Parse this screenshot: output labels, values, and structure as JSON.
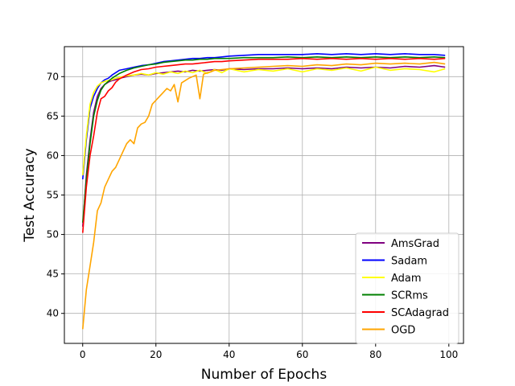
{
  "chart_data": {
    "type": "line",
    "xlabel": "Number of Epochs",
    "ylabel": "Test Accuracy",
    "xlim": [
      -5,
      104
    ],
    "ylim": [
      36.2,
      73.8
    ],
    "x_ticks": [
      0,
      20,
      40,
      60,
      80,
      100
    ],
    "y_ticks": [
      40,
      45,
      50,
      55,
      60,
      65,
      70
    ],
    "grid": true,
    "legend_position": "lower-right",
    "series": [
      {
        "name": "AmsGrad",
        "color": "#800080",
        "x": [
          0,
          1,
          2,
          3,
          4,
          5,
          6,
          7,
          8,
          9,
          10,
          12,
          14,
          16,
          18,
          20,
          22,
          24,
          26,
          28,
          30,
          32,
          34,
          36,
          38,
          40,
          44,
          48,
          52,
          56,
          60,
          64,
          68,
          72,
          76,
          80,
          84,
          88,
          92,
          96,
          99
        ],
        "values": [
          51.0,
          57.5,
          62.0,
          65.5,
          67.5,
          68.5,
          69.0,
          69.3,
          69.5,
          69.6,
          69.8,
          70.0,
          70.2,
          70.3,
          70.2,
          70.4,
          70.5,
          70.6,
          70.7,
          70.6,
          70.8,
          70.7,
          70.8,
          70.9,
          70.8,
          71.0,
          70.9,
          71.0,
          71.0,
          71.1,
          71.0,
          71.1,
          71.0,
          71.2,
          71.1,
          71.2,
          71.1,
          71.3,
          71.2,
          71.4,
          71.2
        ]
      },
      {
        "name": "Sadam",
        "color": "#0000ff",
        "x": [
          0,
          1,
          2,
          3,
          4,
          5,
          6,
          7,
          8,
          9,
          10,
          12,
          14,
          16,
          18,
          20,
          22,
          24,
          26,
          28,
          30,
          32,
          34,
          36,
          38,
          40,
          44,
          48,
          52,
          56,
          60,
          64,
          68,
          72,
          76,
          80,
          84,
          88,
          92,
          96,
          99
        ],
        "values": [
          57.0,
          62.0,
          66.0,
          67.5,
          68.5,
          69.2,
          69.6,
          69.8,
          70.2,
          70.5,
          70.8,
          71.0,
          71.2,
          71.4,
          71.5,
          71.7,
          71.9,
          72.0,
          72.1,
          72.2,
          72.3,
          72.3,
          72.4,
          72.4,
          72.5,
          72.6,
          72.7,
          72.8,
          72.8,
          72.8,
          72.8,
          72.9,
          72.8,
          72.9,
          72.8,
          72.9,
          72.8,
          72.9,
          72.8,
          72.8,
          72.7
        ]
      },
      {
        "name": "Adam",
        "color": "#ffff00",
        "x": [
          0,
          1,
          2,
          3,
          4,
          5,
          6,
          7,
          8,
          9,
          10,
          12,
          14,
          16,
          18,
          20,
          22,
          24,
          26,
          28,
          30,
          32,
          34,
          36,
          38,
          40,
          44,
          48,
          52,
          56,
          60,
          64,
          68,
          72,
          76,
          80,
          84,
          88,
          92,
          96,
          99
        ],
        "values": [
          57.5,
          62.5,
          66.5,
          68.0,
          68.8,
          69.2,
          69.4,
          69.5,
          69.6,
          69.8,
          69.9,
          70.1,
          70.2,
          70.4,
          70.2,
          70.5,
          70.3,
          70.6,
          70.4,
          70.7,
          70.5,
          70.8,
          70.4,
          70.9,
          70.5,
          71.0,
          70.6,
          70.9,
          70.7,
          71.0,
          70.6,
          71.0,
          70.8,
          71.1,
          70.7,
          71.2,
          70.8,
          71.0,
          70.9,
          70.6,
          71.0
        ]
      },
      {
        "name": "SCRms",
        "color": "#008000",
        "x": [
          0,
          1,
          2,
          3,
          4,
          5,
          6,
          7,
          8,
          9,
          10,
          12,
          14,
          16,
          18,
          20,
          22,
          24,
          26,
          28,
          30,
          32,
          34,
          36,
          38,
          40,
          44,
          48,
          52,
          56,
          60,
          64,
          68,
          72,
          76,
          80,
          84,
          88,
          92,
          96,
          99
        ],
        "values": [
          51.5,
          57.0,
          61.5,
          65.0,
          67.0,
          68.3,
          69.0,
          69.4,
          69.8,
          70.1,
          70.4,
          70.8,
          71.1,
          71.3,
          71.5,
          71.6,
          71.8,
          71.9,
          72.0,
          72.1,
          72.1,
          72.2,
          72.2,
          72.3,
          72.3,
          72.3,
          72.4,
          72.4,
          72.4,
          72.5,
          72.4,
          72.5,
          72.4,
          72.5,
          72.4,
          72.5,
          72.4,
          72.5,
          72.4,
          72.5,
          72.4
        ]
      },
      {
        "name": "SCAdagrad",
        "color": "#ff0000",
        "x": [
          0,
          1,
          2,
          3,
          4,
          5,
          6,
          7,
          8,
          9,
          10,
          12,
          14,
          16,
          18,
          20,
          22,
          24,
          26,
          28,
          30,
          32,
          34,
          36,
          38,
          40,
          44,
          48,
          52,
          56,
          60,
          64,
          68,
          72,
          76,
          80,
          84,
          88,
          92,
          96,
          99
        ],
        "values": [
          50.2,
          56.0,
          60.0,
          62.5,
          65.5,
          67.2,
          67.5,
          68.2,
          68.6,
          69.3,
          69.7,
          70.2,
          70.6,
          70.9,
          71.0,
          71.2,
          71.3,
          71.4,
          71.5,
          71.6,
          71.6,
          71.7,
          71.8,
          71.9,
          71.9,
          72.0,
          72.1,
          72.2,
          72.2,
          72.2,
          72.3,
          72.2,
          72.3,
          72.2,
          72.3,
          72.2,
          72.3,
          72.2,
          72.3,
          72.2,
          72.3
        ]
      },
      {
        "name": "OGD",
        "color": "#ffa500",
        "x": [
          0,
          1,
          2,
          3,
          4,
          5,
          6,
          7,
          8,
          9,
          10,
          11,
          12,
          13,
          14,
          15,
          16,
          17,
          18,
          19,
          20,
          21,
          22,
          23,
          24,
          25,
          26,
          27,
          28,
          29,
          30,
          31,
          32,
          33,
          34,
          35,
          36,
          38,
          40,
          44,
          48,
          52,
          56,
          60,
          64,
          68,
          72,
          76,
          80,
          84,
          88,
          92,
          96,
          99
        ],
        "values": [
          38.0,
          43.0,
          46.0,
          49.0,
          53.0,
          54.0,
          56.0,
          57.0,
          58.0,
          58.5,
          59.5,
          60.5,
          61.5,
          62.0,
          61.5,
          63.5,
          64.0,
          64.2,
          65.0,
          66.5,
          67.0,
          67.5,
          68.0,
          68.5,
          68.2,
          69.0,
          66.8,
          69.2,
          69.5,
          69.8,
          70.0,
          70.2,
          67.2,
          70.3,
          70.5,
          70.6,
          70.8,
          70.9,
          71.0,
          71.1,
          71.2,
          71.3,
          71.4,
          71.3,
          71.5,
          71.4,
          71.6,
          71.5,
          71.7,
          71.6,
          71.7,
          71.6,
          71.8,
          71.6
        ]
      }
    ]
  }
}
